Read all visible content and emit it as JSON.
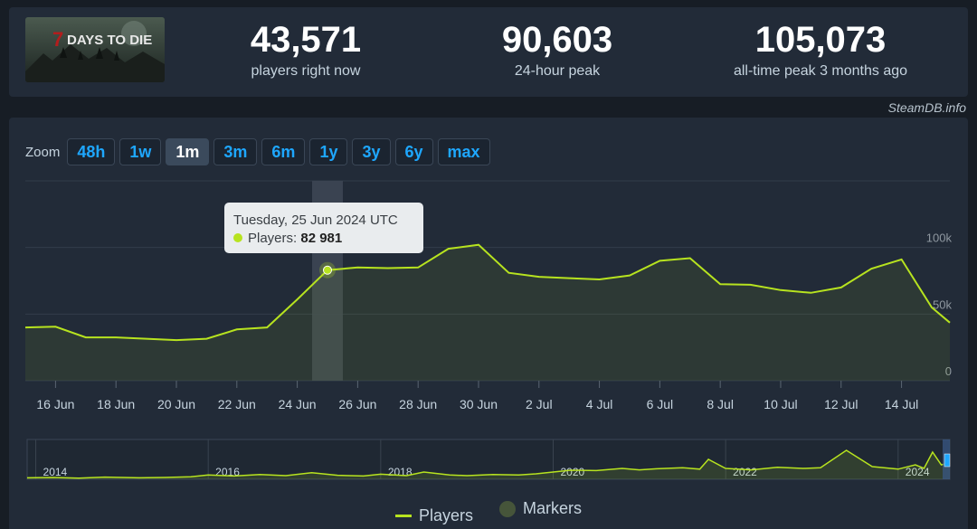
{
  "game": {
    "logo_text": "7 DAYS TO DIE",
    "logo_icon": "game-logo-icon"
  },
  "stats": [
    {
      "value": "43,571",
      "label": "players right now"
    },
    {
      "value": "90,603",
      "label": "24-hour peak"
    },
    {
      "value": "105,073",
      "label": "all-time peak 3 months ago"
    }
  ],
  "credit": "SteamDB.info",
  "zoom": {
    "label": "Zoom",
    "options": [
      "48h",
      "1w",
      "1m",
      "3m",
      "6m",
      "1y",
      "3y",
      "6y",
      "max"
    ],
    "selected": "1m"
  },
  "tooltip": {
    "date": "Tuesday, 25 Jun 2024 UTC",
    "series": "Players:",
    "value": "82 981"
  },
  "legend": {
    "players": "Players",
    "markers": "Markers"
  },
  "colors": {
    "line": "#b7e31f",
    "marker": "#46553a",
    "accent": "#1ea7ff"
  },
  "chart_data": {
    "type": "line",
    "series": [
      {
        "name": "Players",
        "x": [
          15,
          16,
          17,
          18,
          19,
          20,
          21,
          22,
          23,
          24,
          25,
          26,
          27,
          28,
          29,
          30,
          31,
          32,
          33,
          34,
          35,
          36,
          37,
          38,
          39,
          40,
          41,
          42,
          43,
          44,
          45,
          45.6
        ],
        "y": [
          40000,
          40500,
          32500,
          32500,
          31500,
          30500,
          31500,
          38500,
          40000,
          61000,
          82981,
          85000,
          84500,
          85000,
          99000,
          102000,
          81000,
          78000,
          77000,
          76000,
          79000,
          90000,
          92000,
          72500,
          72000,
          68000,
          66000,
          70000,
          84000,
          91000,
          55000,
          43571
        ]
      }
    ],
    "x_ticks": [
      {
        "v": 16,
        "label": "16 Jun"
      },
      {
        "v": 18,
        "label": "18 Jun"
      },
      {
        "v": 20,
        "label": "20 Jun"
      },
      {
        "v": 22,
        "label": "22 Jun"
      },
      {
        "v": 24,
        "label": "24 Jun"
      },
      {
        "v": 26,
        "label": "26 Jun"
      },
      {
        "v": 28,
        "label": "28 Jun"
      },
      {
        "v": 30,
        "label": "30 Jun"
      },
      {
        "v": 32,
        "label": "2 Jul"
      },
      {
        "v": 34,
        "label": "4 Jul"
      },
      {
        "v": 36,
        "label": "6 Jul"
      },
      {
        "v": 38,
        "label": "8 Jul"
      },
      {
        "v": 40,
        "label": "10 Jul"
      },
      {
        "v": 42,
        "label": "12 Jul"
      },
      {
        "v": 44,
        "label": "14 Jul"
      }
    ],
    "y_ticks": [
      {
        "v": 0,
        "label": "0"
      },
      {
        "v": 50000,
        "label": "50k"
      },
      {
        "v": 100000,
        "label": "100k"
      }
    ],
    "ylim": [
      0,
      150000
    ],
    "xlim": [
      15,
      45.6
    ],
    "highlight_x": 25,
    "navigator": {
      "years": [
        "2014",
        "2016",
        "2018",
        "2020",
        "2022",
        "2024"
      ],
      "year_pos": [
        2014,
        2016,
        2018,
        2020,
        2022,
        2024
      ],
      "xlim": [
        2013.9,
        2024.6
      ],
      "ylim": [
        0,
        110000
      ],
      "x": [
        2013.9,
        2014.2,
        2014.5,
        2014.8,
        2015.0,
        2015.2,
        2015.5,
        2015.8,
        2016.0,
        2016.3,
        2016.6,
        2016.9,
        2017.2,
        2017.5,
        2017.8,
        2018.0,
        2018.3,
        2018.5,
        2018.8,
        2019.0,
        2019.3,
        2019.6,
        2019.8,
        2020.0,
        2020.2,
        2020.5,
        2020.8,
        2021.0,
        2021.2,
        2021.5,
        2021.7,
        2021.8,
        2022.0,
        2022.3,
        2022.6,
        2022.9,
        2023.1,
        2023.4,
        2023.7,
        2024.0,
        2024.2,
        2024.3,
        2024.4,
        2024.5,
        2024.6
      ],
      "y": [
        4000,
        5000,
        3000,
        6000,
        5000,
        4000,
        5000,
        7000,
        12000,
        9000,
        13000,
        10000,
        18000,
        11000,
        9000,
        14000,
        10000,
        20000,
        12000,
        10000,
        13000,
        12000,
        15000,
        20000,
        25000,
        24000,
        30000,
        26000,
        29000,
        32000,
        28000,
        55000,
        30000,
        26000,
        33000,
        30000,
        32000,
        80000,
        35000,
        28000,
        40000,
        30000,
        75000,
        40000,
        45000
      ]
    }
  }
}
